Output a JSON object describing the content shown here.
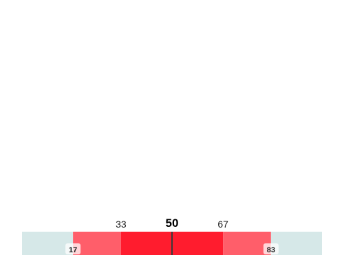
{
  "chart_data": {
    "type": "bar",
    "orientation": "horizontal",
    "axis_range": [
      0,
      100
    ],
    "bands": [
      {
        "from": 0,
        "to": 17,
        "color": "#d6e8e8"
      },
      {
        "from": 17,
        "to": 33,
        "color": "#ff5e6a"
      },
      {
        "from": 33,
        "to": 67,
        "color": "#ff1c2e"
      },
      {
        "from": 67,
        "to": 83,
        "color": "#ff5e6a"
      },
      {
        "from": 83,
        "to": 100,
        "color": "#d6e8e8"
      }
    ],
    "marker_value": 50,
    "tick_labels": [
      {
        "value": 33,
        "label": "33"
      },
      {
        "value": 50,
        "label": "50"
      },
      {
        "value": 67,
        "label": "67"
      }
    ],
    "end_labels": [
      {
        "value": 17,
        "label": "17"
      },
      {
        "value": 83,
        "label": "83"
      }
    ],
    "grid": false,
    "legend": "none"
  }
}
